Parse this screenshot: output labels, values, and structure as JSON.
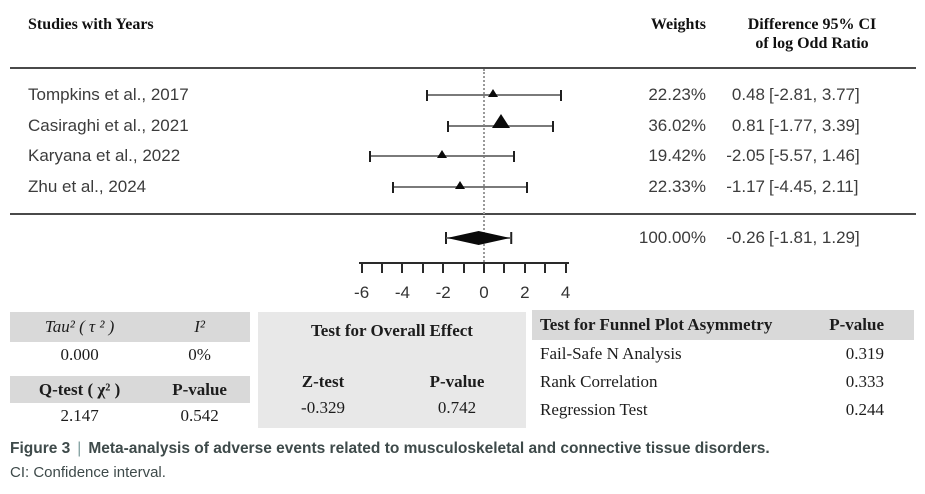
{
  "header": {
    "studies": "Studies with Years",
    "weights": "Weights",
    "difference_line1": "Difference 95% CI",
    "difference_line2": "of log Odd Ratio"
  },
  "chart_data": {
    "type": "forest",
    "title": "Meta-analysis of adverse events related to musculoskeletal and connective tissue disorders",
    "effect_measure": "Difference of log Odd Ratio",
    "x_axis": {
      "ticks": [
        -6,
        -5,
        -4,
        -3,
        -2,
        -1,
        0,
        1,
        2,
        3,
        4
      ],
      "label_values": [
        -6,
        -4,
        -2,
        0,
        2,
        4
      ],
      "labels": [
        "-6",
        "-4",
        "-2",
        "0",
        "2",
        "4"
      ],
      "range": [
        -6.15,
        4.15
      ],
      "zero_reference_line": 0
    },
    "studies": [
      {
        "name": "Tompkins  et al., 2017",
        "weight_pct": 22.23,
        "weight_label": "22.23%",
        "estimate": 0.48,
        "ci_low": -2.81,
        "ci_high": 3.77,
        "estimate_label": "0.48",
        "ci_label": "[-2.81, 3.77]"
      },
      {
        "name": "Casiraghi  et al., 2021",
        "weight_pct": 36.02,
        "weight_label": "36.02%",
        "estimate": 0.81,
        "ci_low": -1.77,
        "ci_high": 3.39,
        "estimate_label": "0.81",
        "ci_label": "[-1.77, 3.39]"
      },
      {
        "name": "Karyana et al., 2022",
        "weight_pct": 19.42,
        "weight_label": "19.42%",
        "estimate": -2.05,
        "ci_low": -5.57,
        "ci_high": 1.46,
        "estimate_label": "-2.05",
        "ci_label": "[-5.57, 1.46]"
      },
      {
        "name": "Zhu et al., 2024",
        "weight_pct": 22.33,
        "weight_label": "22.33%",
        "estimate": -1.17,
        "ci_low": -4.45,
        "ci_high": 2.11,
        "estimate_label": "-1.17",
        "ci_label": "[-4.45, 2.11]"
      }
    ],
    "overall": {
      "weight_pct": 100.0,
      "weight_label": "100.00%",
      "estimate": -0.26,
      "ci_low": -1.81,
      "ci_high": 1.29,
      "estimate_label": "-0.26",
      "ci_label": "[-1.81, 1.29]"
    }
  },
  "stats": {
    "heterogeneity": {
      "tau2_label": "Tau² ( τ ² )",
      "i2_label": "I²",
      "tau2_value": "0.000",
      "i2_value": "0%",
      "qtest_label": "Q-test ( χ² )",
      "qtest_pvalue_label": "P-value",
      "qtest_value": "2.147",
      "qtest_pvalue": "0.542"
    },
    "overall_effect": {
      "title": "Test for Overall Effect",
      "ztest_label": "Z-test",
      "pvalue_label": "P-value",
      "ztest_value": "-0.329",
      "pvalue": "0.742"
    },
    "funnel": {
      "title": "Test for Funnel Plot Asymmetry",
      "pvalue_label": "P-value",
      "rows": [
        {
          "label": "Fail-Safe N Analysis",
          "pvalue": "0.319"
        },
        {
          "label": "Rank Correlation",
          "pvalue": "0.333"
        },
        {
          "label": "Regression Test",
          "pvalue": "0.244"
        }
      ]
    }
  },
  "caption": {
    "figure_label": "Figure 3",
    "separator": "|",
    "title": "Meta-analysis of adverse events related to musculoskeletal and connective tissue disorders.",
    "note": "CI: Confidence interval."
  }
}
